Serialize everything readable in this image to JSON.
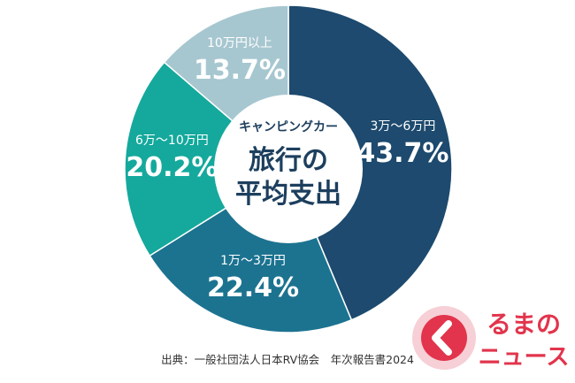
{
  "chart_data": {
    "type": "pie",
    "donut": true,
    "center_title": [
      "キャンピングカー",
      "旅行の",
      "平均支出"
    ],
    "categories": [
      "3万〜6万円",
      "1万〜3万円",
      "6万〜10万円",
      "10万円以上"
    ],
    "values": [
      43.7,
      22.4,
      20.2,
      13.7
    ],
    "value_labels": [
      "43.7%",
      "22.4%",
      "20.2%",
      "13.7%"
    ],
    "colors": [
      "#1d4a6e",
      "#1c7390",
      "#14a99c",
      "#a7c7d0"
    ]
  },
  "source": "出典：一般社団法人日本RV協会　年次報告書2024",
  "logo": {
    "line1": "るまの",
    "line2": "ニュース",
    "color": "#e2344c"
  }
}
